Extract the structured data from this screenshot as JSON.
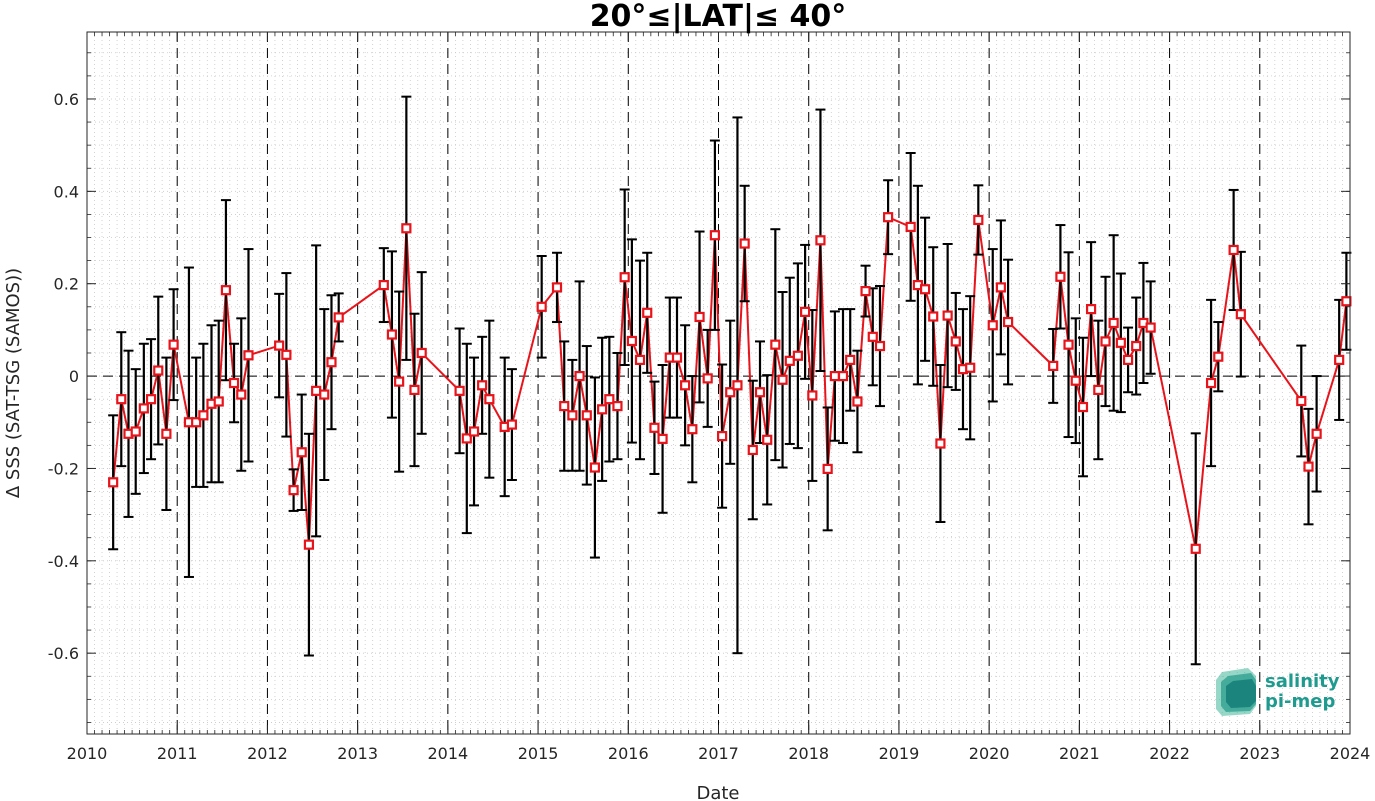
{
  "chart_data": {
    "type": "line",
    "title": "20°≤|LAT|≤ 40°",
    "xlabel": "Date",
    "ylabel": "Δ SSS (SAT-TSG (SAMOS))",
    "xlim": [
      2010,
      2024
    ],
    "ylim": [
      -0.775,
      0.745
    ],
    "x_ticks": [
      2010,
      2011,
      2012,
      2013,
      2014,
      2015,
      2016,
      2017,
      2018,
      2019,
      2020,
      2021,
      2022,
      2023,
      2024
    ],
    "x_tick_labels": [
      "2010",
      "2011",
      "2012",
      "2013",
      "2014",
      "2015",
      "2016",
      "2017",
      "2018",
      "2019",
      "2020",
      "2021",
      "2022",
      "2023",
      "2024"
    ],
    "y_ticks": [
      -0.6,
      -0.4,
      -0.2,
      0,
      0.2,
      0.4,
      0.6
    ],
    "y_tick_labels": [
      "-0.6",
      "-0.4",
      "-0.2",
      "0",
      "0.2",
      "0.4",
      "0.6"
    ],
    "grid": "minor dotted; dashed vertical lines at each year; dashed horizontal line at 0",
    "legend": "none",
    "colors": {
      "series": "#e8141b",
      "errorbar": "#000000",
      "frame": "#262626"
    },
    "series": [
      {
        "x": [
          2010.29,
          2010.38,
          2010.46,
          2010.54,
          2010.63,
          2010.71,
          2010.79,
          2010.88,
          2010.96,
          2011.13,
          2011.21,
          2011.29,
          2011.38,
          2011.46,
          2011.54,
          2011.63,
          2011.71,
          2011.79,
          2012.13,
          2012.21,
          2012.29,
          2012.38,
          2012.46,
          2012.54,
          2012.63,
          2012.71,
          2012.79,
          2013.29,
          2013.38,
          2013.46,
          2013.54,
          2013.63,
          2013.71,
          2014.13,
          2014.21,
          2014.29,
          2014.38,
          2014.46,
          2014.63,
          2014.71,
          2015.04,
          2015.21,
          2015.29,
          2015.38,
          2015.46,
          2015.54,
          2015.63,
          2015.71,
          2015.79,
          2015.88,
          2015.96,
          2016.04,
          2016.13,
          2016.21,
          2016.29,
          2016.38,
          2016.46,
          2016.54,
          2016.63,
          2016.71,
          2016.79,
          2016.88,
          2016.96,
          2017.04,
          2017.13,
          2017.21,
          2017.29,
          2017.38,
          2017.46,
          2017.54,
          2017.63,
          2017.71,
          2017.79,
          2017.88,
          2017.96,
          2018.04,
          2018.13,
          2018.21,
          2018.29,
          2018.38,
          2018.46,
          2018.54,
          2018.63,
          2018.71,
          2018.79,
          2018.88,
          2019.13,
          2019.21,
          2019.29,
          2019.38,
          2019.46,
          2019.54,
          2019.63,
          2019.71,
          2019.79,
          2019.88,
          2020.04,
          2020.13,
          2020.21,
          2020.71,
          2020.79,
          2020.88,
          2020.96,
          2021.04,
          2021.13,
          2021.21,
          2021.29,
          2021.38,
          2021.46,
          2021.54,
          2021.63,
          2021.71,
          2021.79,
          2022.29,
          2022.46,
          2022.54,
          2022.71,
          2022.79,
          2023.46,
          2023.54,
          2023.63,
          2023.88,
          2023.96
        ],
        "y": [
          -0.23,
          -0.05,
          -0.125,
          -0.12,
          -0.07,
          -0.05,
          0.012,
          -0.125,
          0.068,
          -0.1,
          -0.1,
          -0.085,
          -0.06,
          -0.055,
          0.186,
          -0.015,
          -0.04,
          0.045,
          0.066,
          0.046,
          -0.247,
          -0.165,
          -0.365,
          -0.032,
          -0.04,
          0.03,
          0.127,
          0.197,
          0.09,
          -0.012,
          0.32,
          -0.03,
          0.05,
          -0.032,
          -0.135,
          -0.12,
          -0.02,
          -0.05,
          -0.11,
          -0.105,
          0.15,
          0.192,
          -0.065,
          -0.085,
          0.0,
          -0.085,
          -0.198,
          -0.072,
          -0.05,
          -0.065,
          0.214,
          0.076,
          0.035,
          0.137,
          -0.112,
          -0.136,
          0.04,
          0.04,
          -0.02,
          -0.115,
          0.128,
          -0.005,
          0.305,
          -0.13,
          -0.035,
          -0.02,
          0.287,
          -0.16,
          -0.035,
          -0.138,
          0.068,
          -0.008,
          0.033,
          0.044,
          0.139,
          -0.042,
          0.294,
          -0.201,
          0.0,
          0.0,
          0.035,
          -0.055,
          0.184,
          0.085,
          0.065,
          0.344,
          0.323,
          0.197,
          0.188,
          0.129,
          -0.146,
          0.131,
          0.075,
          0.015,
          0.018,
          0.338,
          0.11,
          0.192,
          0.117,
          0.022,
          0.215,
          0.068,
          -0.01,
          -0.067,
          0.145,
          -0.03,
          0.075,
          0.115,
          0.072,
          0.035,
          0.065,
          0.115,
          0.105,
          -0.374,
          -0.015,
          0.042,
          0.273,
          0.134,
          -0.054,
          -0.196,
          -0.125,
          0.035,
          0.162
        ],
        "err": [
          0.145,
          0.145,
          0.18,
          0.135,
          0.14,
          0.13,
          0.16,
          0.165,
          0.12,
          0.335,
          0.14,
          0.155,
          0.17,
          0.175,
          0.195,
          0.085,
          0.165,
          0.23,
          0.112,
          0.177,
          0.045,
          0.125,
          0.24,
          0.315,
          0.185,
          0.145,
          0.052,
          0.08,
          0.18,
          0.195,
          0.285,
          0.165,
          0.175,
          0.135,
          0.205,
          0.16,
          0.105,
          0.17,
          0.15,
          0.12,
          0.11,
          0.075,
          0.14,
          0.12,
          0.205,
          0.15,
          0.195,
          0.155,
          0.135,
          0.115,
          0.19,
          0.22,
          0.215,
          0.13,
          0.1,
          0.16,
          0.13,
          0.13,
          0.13,
          0.115,
          0.185,
          0.105,
          0.205,
          0.155,
          0.155,
          0.58,
          0.125,
          0.15,
          0.11,
          0.14,
          0.25,
          0.19,
          0.18,
          0.2,
          0.145,
          0.185,
          0.283,
          0.133,
          0.14,
          0.145,
          0.11,
          0.11,
          0.055,
          0.105,
          0.13,
          0.08,
          0.16,
          0.215,
          0.155,
          0.15,
          0.17,
          0.155,
          0.105,
          0.13,
          0.155,
          0.075,
          0.165,
          0.145,
          0.135,
          0.08,
          0.112,
          0.2,
          0.135,
          0.15,
          0.145,
          0.15,
          0.14,
          0.19,
          0.15,
          0.07,
          0.105,
          0.13,
          0.1,
          0.25,
          0.18,
          0.075,
          0.13,
          0.135,
          0.12,
          0.125,
          0.125,
          0.13,
          0.105
        ]
      }
    ]
  },
  "logo": {
    "line1": "salinity",
    "line2": "pi-mep"
  }
}
